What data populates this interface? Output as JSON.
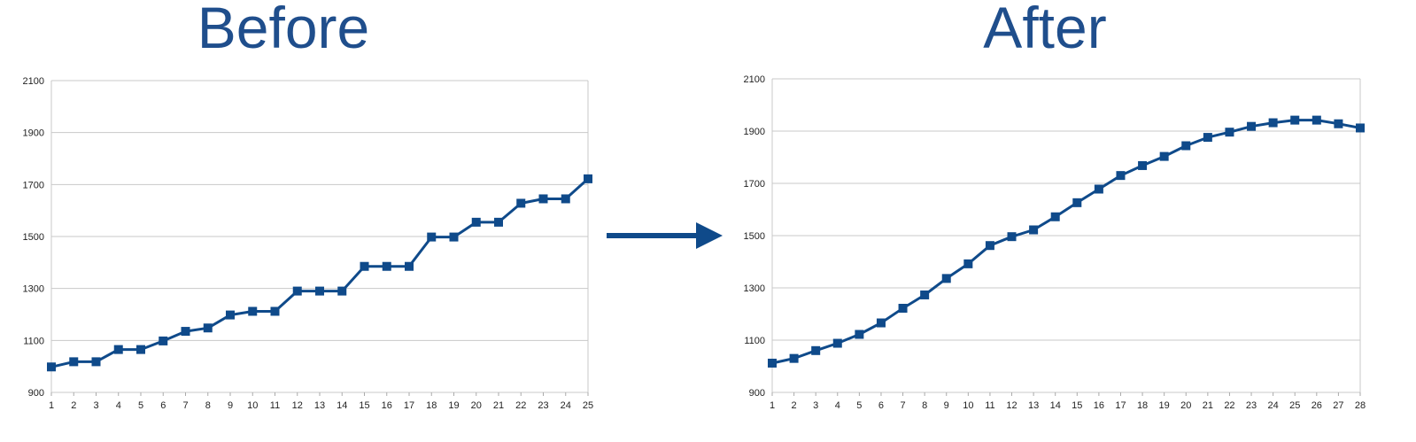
{
  "chart_data": [
    {
      "type": "line",
      "title": "Before",
      "x": [
        1,
        2,
        3,
        4,
        5,
        6,
        7,
        8,
        9,
        10,
        11,
        12,
        13,
        14,
        15,
        16,
        17,
        18,
        19,
        20,
        21,
        22,
        23,
        24,
        25
      ],
      "series": [
        {
          "values": [
            998,
            1018,
            1018,
            1065,
            1065,
            1098,
            1135,
            1148,
            1198,
            1212,
            1212,
            1290,
            1290,
            1290,
            1385,
            1385,
            1385,
            1498,
            1498,
            1555,
            1555,
            1628,
            1645,
            1645,
            1722
          ]
        }
      ],
      "ylim": [
        900,
        2100
      ],
      "yticks": [
        900,
        1100,
        1300,
        1500,
        1700,
        1900,
        2100
      ],
      "xlabel": "",
      "ylabel": "",
      "grid": true,
      "legend": "none",
      "color": "#0f4a8a"
    },
    {
      "type": "line",
      "title": "After",
      "x": [
        1,
        2,
        3,
        4,
        5,
        6,
        7,
        8,
        9,
        10,
        11,
        12,
        13,
        14,
        15,
        16,
        17,
        18,
        19,
        20,
        21,
        22,
        23,
        24,
        25,
        26,
        27,
        28
      ],
      "series": [
        {
          "values": [
            1012,
            1030,
            1060,
            1088,
            1122,
            1166,
            1222,
            1273,
            1336,
            1392,
            1462,
            1496,
            1522,
            1572,
            1626,
            1678,
            1730,
            1768,
            1803,
            1844,
            1876,
            1896,
            1918,
            1932,
            1942,
            1942,
            1928,
            1912
          ]
        }
      ],
      "ylim": [
        900,
        2100
      ],
      "yticks": [
        900,
        1100,
        1300,
        1500,
        1700,
        1900,
        2100
      ],
      "xlabel": "",
      "ylabel": "",
      "grid": true,
      "legend": "none",
      "color": "#0f4a8a"
    }
  ],
  "arrow_color": "#0f4a8a"
}
